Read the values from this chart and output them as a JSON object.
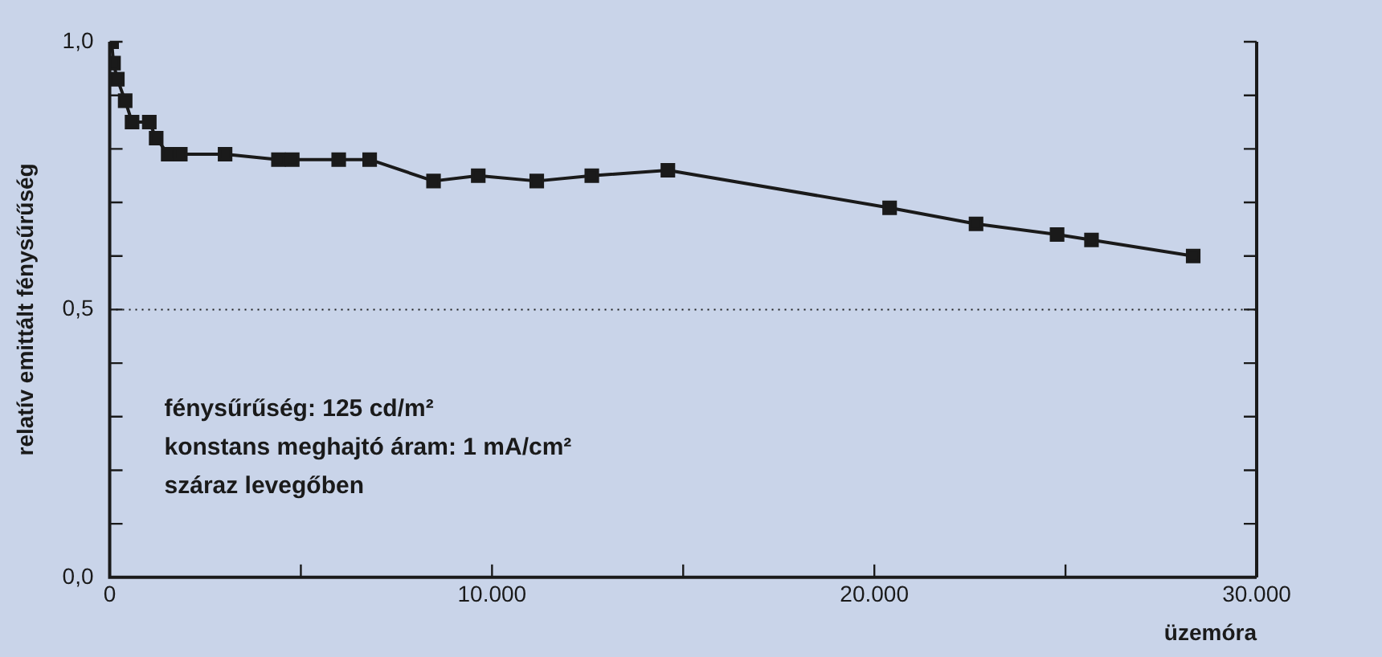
{
  "chart_data": {
    "type": "line",
    "xlabel": "üzemóra",
    "ylabel": "relatív emittált fénysűrűség",
    "x": [
      50,
      100,
      200,
      405,
      585,
      1036,
      1216,
      1530,
      1847,
      3018,
      4414,
      4775,
      5990,
      6800,
      8470,
      9640,
      11170,
      12610,
      14600,
      20400,
      22660,
      24780,
      25680,
      28340
    ],
    "series": [
      {
        "color": "#1a1a1a",
        "values": [
          1.0,
          0.96,
          0.93,
          0.89,
          0.85,
          0.85,
          0.82,
          0.79,
          0.79,
          0.79,
          0.78,
          0.78,
          0.78,
          0.78,
          0.74,
          0.75,
          0.74,
          0.75,
          0.76,
          0.69,
          0.66,
          0.64,
          0.63,
          0.6
        ]
      }
    ],
    "xlim": [
      0,
      30000
    ],
    "ylim": [
      0,
      1
    ],
    "xticks": [
      {
        "value": 0,
        "label": "0"
      },
      {
        "value": 5000,
        "label": null
      },
      {
        "value": 10000,
        "label": "10.000"
      },
      {
        "value": 15000,
        "label": null
      },
      {
        "value": 20000,
        "label": "20.000"
      },
      {
        "value": 25000,
        "label": null
      },
      {
        "value": 30000,
        "label": "30.000"
      }
    ],
    "yticks": [
      {
        "value": 0,
        "label": "0,0"
      },
      {
        "value": 0.1,
        "label": null
      },
      {
        "value": 0.2,
        "label": null
      },
      {
        "value": 0.3,
        "label": null
      },
      {
        "value": 0.4,
        "label": null
      },
      {
        "value": 0.5,
        "label": "0,5"
      },
      {
        "value": 0.6,
        "label": null
      },
      {
        "value": 0.7,
        "label": null
      },
      {
        "value": 0.8,
        "label": null
      },
      {
        "value": 0.9,
        "label": null
      },
      {
        "value": 1,
        "label": "1,0"
      }
    ],
    "ref_lines": [
      {
        "axis": "y",
        "value": 0.5,
        "line_style": "dotted",
        "color": "#1a1a1a"
      }
    ],
    "annotations": [
      "fénysűrűség: 125 cd/m²",
      "konstans meghajtó áram: 1 mA/cm²",
      "száraz levegőben"
    ],
    "marker": "square",
    "line_style": "solid",
    "grid": false,
    "legend": false
  }
}
